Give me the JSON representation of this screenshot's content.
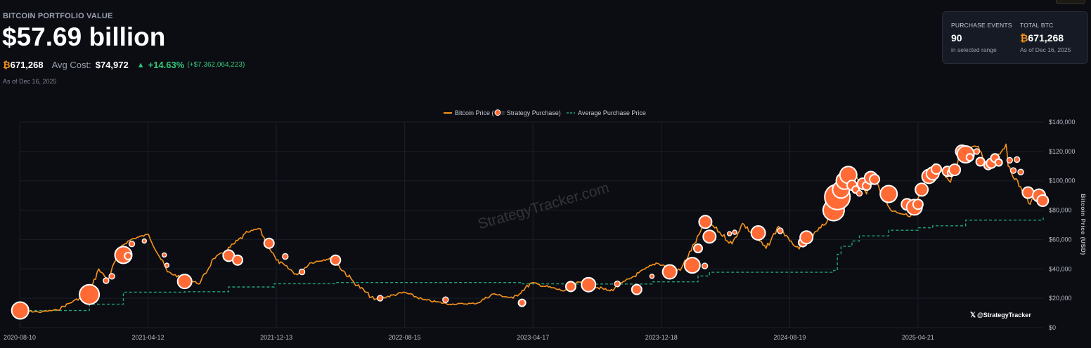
{
  "header": {
    "title": "BITCOIN PORTFOLIO VALUE",
    "value": "$57.69 billion",
    "btc_symbol": "₿",
    "btc_holdings": "671,268",
    "avg_cost_label": "Avg Cost:",
    "avg_cost": "$74,972",
    "change_arrow": "▲",
    "change_pct": "+14.63%",
    "change_abs": "(+$7,362,064,223)",
    "as_of": "As of Dec 16, 2025"
  },
  "summary_card": {
    "events_label": "PURCHASE EVENTS",
    "events_value": "90",
    "events_sub": "in selected range",
    "total_label": "TOTAL BTC",
    "total_symbol": "₿",
    "total_value": "671,268",
    "total_sub": "As of Dec 16, 2025"
  },
  "legend": {
    "price_label_pre": "Bitcoin Price (",
    "price_label_post": " = Strategy Purchase)",
    "avg_label": "Average Purchase Price"
  },
  "watermark": "StrategyTracker.com",
  "handle": "@StrategyTracker",
  "handle_icon": "x-logo-icon",
  "colors": {
    "price_line": "#f7931a",
    "avg_line": "#1fa37a",
    "purchase_dot": "#ff6a35",
    "background": "#0b0d13"
  },
  "chart_data": {
    "type": "line",
    "ylabel": "Bitcoin Price (USD)",
    "ylim": [
      0,
      140000
    ],
    "y_ticks": [
      "$0",
      "$20,000",
      "$40,000",
      "$60,000",
      "$80,000",
      "$100,000",
      "$120,000",
      "$140,000"
    ],
    "y_tick_values": [
      0,
      20000,
      40000,
      60000,
      80000,
      100000,
      120000,
      140000
    ],
    "x_ticks": [
      "2020-08-10",
      "2021-04-12",
      "2021-12-13",
      "2022-08-15",
      "2023-04-17",
      "2023-12-18",
      "2024-08-19",
      "2025-04-21"
    ],
    "x_start": "2020-08-10",
    "x_end": "2025-12-16",
    "legend_position": "top-center",
    "grid": true,
    "series": [
      {
        "name": "Bitcoin Price",
        "points": [
          [
            "2020-08-10",
            11800
          ],
          [
            "2020-09-15",
            10600
          ],
          [
            "2020-10-20",
            12000
          ],
          [
            "2020-11-20",
            18000
          ],
          [
            "2020-12-21",
            23000
          ],
          [
            "2021-01-08",
            40000
          ],
          [
            "2021-01-25",
            32500
          ],
          [
            "2021-02-21",
            56000
          ],
          [
            "2021-03-13",
            60500
          ],
          [
            "2021-04-13",
            63500
          ],
          [
            "2021-05-19",
            38000
          ],
          [
            "2021-06-21",
            33000
          ],
          [
            "2021-07-20",
            30000
          ],
          [
            "2021-08-15",
            47000
          ],
          [
            "2021-09-07",
            52000
          ],
          [
            "2021-10-20",
            65000
          ],
          [
            "2021-11-10",
            67500
          ],
          [
            "2021-12-13",
            46000
          ],
          [
            "2022-01-22",
            36000
          ],
          [
            "2022-02-15",
            44000
          ],
          [
            "2022-03-28",
            47500
          ],
          [
            "2022-05-10",
            31000
          ],
          [
            "2022-06-18",
            19000
          ],
          [
            "2022-08-15",
            24000
          ],
          [
            "2022-09-20",
            19000
          ],
          [
            "2022-11-09",
            16000
          ],
          [
            "2022-12-30",
            16500
          ],
          [
            "2023-01-31",
            23000
          ],
          [
            "2023-03-10",
            20000
          ],
          [
            "2023-04-14",
            30500
          ],
          [
            "2023-06-15",
            25000
          ],
          [
            "2023-07-14",
            31000
          ],
          [
            "2023-09-11",
            25000
          ],
          [
            "2023-10-24",
            34500
          ],
          [
            "2023-12-08",
            44000
          ],
          [
            "2024-01-23",
            39000
          ],
          [
            "2024-03-14",
            73000
          ],
          [
            "2024-05-01",
            57000
          ],
          [
            "2024-05-21",
            71000
          ],
          [
            "2024-07-05",
            54000
          ],
          [
            "2024-07-29",
            69000
          ],
          [
            "2024-08-19",
            59000
          ],
          [
            "2024-09-06",
            53500
          ],
          [
            "2024-10-29",
            72000
          ],
          [
            "2024-11-22",
            99000
          ],
          [
            "2024-12-17",
            106000
          ],
          [
            "2025-01-13",
            91000
          ],
          [
            "2025-01-21",
            106000
          ],
          [
            "2025-02-28",
            80000
          ],
          [
            "2025-04-07",
            76000
          ],
          [
            "2025-05-22",
            111500
          ],
          [
            "2025-06-22",
            99000
          ],
          [
            "2025-07-14",
            122000
          ],
          [
            "2025-08-14",
            123500
          ],
          [
            "2025-09-01",
            108000
          ],
          [
            "2025-10-06",
            125000
          ],
          [
            "2025-10-10",
            110000
          ],
          [
            "2025-11-21",
            84000
          ],
          [
            "2025-12-03",
            93000
          ],
          [
            "2025-12-16",
            86500
          ]
        ]
      },
      {
        "name": "Average Purchase Price",
        "points": [
          [
            "2020-08-10",
            11650
          ],
          [
            "2020-12-21",
            15950
          ],
          [
            "2021-02-24",
            24200
          ],
          [
            "2021-06-21",
            24450
          ],
          [
            "2021-09-13",
            27700
          ],
          [
            "2021-12-09",
            29900
          ],
          [
            "2022-04-05",
            30700
          ],
          [
            "2023-03-27",
            29800
          ],
          [
            "2023-06-28",
            29700
          ],
          [
            "2023-11-30",
            31200
          ],
          [
            "2024-02-26",
            35200
          ],
          [
            "2024-03-19",
            37700
          ],
          [
            "2024-11-11",
            39000
          ],
          [
            "2024-11-18",
            49900
          ],
          [
            "2024-11-25",
            55400
          ],
          [
            "2024-12-16",
            59000
          ],
          [
            "2024-12-30",
            62500
          ],
          [
            "2025-02-24",
            66300
          ],
          [
            "2025-04-21",
            68000
          ],
          [
            "2025-05-19",
            69400
          ],
          [
            "2025-07-21",
            73200
          ],
          [
            "2025-12-16",
            74972
          ]
        ]
      }
    ],
    "purchases": [
      {
        "date": "2020-08-11",
        "price": 11700,
        "size": 12
      },
      {
        "date": "2020-12-21",
        "price": 22600,
        "size": 14
      },
      {
        "date": "2021-01-22",
        "price": 32000,
        "size": 4
      },
      {
        "date": "2021-02-02",
        "price": 35000,
        "size": 4
      },
      {
        "date": "2021-02-24",
        "price": 49500,
        "size": 12
      },
      {
        "date": "2021-03-05",
        "price": 48800,
        "size": 5
      },
      {
        "date": "2021-03-12",
        "price": 57000,
        "size": 4
      },
      {
        "date": "2021-04-05",
        "price": 59000,
        "size": 3
      },
      {
        "date": "2021-05-13",
        "price": 49500,
        "size": 3
      },
      {
        "date": "2021-05-18",
        "price": 42500,
        "size": 3
      },
      {
        "date": "2021-06-21",
        "price": 31500,
        "size": 10
      },
      {
        "date": "2021-09-13",
        "price": 49000,
        "size": 8
      },
      {
        "date": "2021-09-30",
        "price": 46000,
        "size": 7
      },
      {
        "date": "2021-11-29",
        "price": 57500,
        "size": 7
      },
      {
        "date": "2021-12-30",
        "price": 48500,
        "size": 4
      },
      {
        "date": "2022-01-31",
        "price": 38000,
        "size": 4
      },
      {
        "date": "2022-04-05",
        "price": 46000,
        "size": 7
      },
      {
        "date": "2022-06-29",
        "price": 20000,
        "size": 4
      },
      {
        "date": "2022-11-01",
        "price": 19000,
        "size": 4
      },
      {
        "date": "2023-03-27",
        "price": 16900,
        "size": 5
      },
      {
        "date": "2023-06-28",
        "price": 28000,
        "size": 7
      },
      {
        "date": "2023-07-31",
        "price": 28500,
        "size": 4
      },
      {
        "date": "2023-08-01",
        "price": 29300,
        "size": 10
      },
      {
        "date": "2023-09-25",
        "price": 29800,
        "size": 4
      },
      {
        "date": "2023-11-01",
        "price": 26000,
        "size": 7
      },
      {
        "date": "2023-11-30",
        "price": 35000,
        "size": 3
      },
      {
        "date": "2024-01-03",
        "price": 38000,
        "size": 10
      },
      {
        "date": "2024-02-15",
        "price": 42500,
        "size": 11
      },
      {
        "date": "2024-03-10",
        "price": 42000,
        "size": 4
      },
      {
        "date": "2024-02-26",
        "price": 54000,
        "size": 6
      },
      {
        "date": "2024-03-11",
        "price": 72000,
        "size": 9
      },
      {
        "date": "2024-03-19",
        "price": 62000,
        "size": 9
      },
      {
        "date": "2024-04-26",
        "price": 64000,
        "size": 3
      },
      {
        "date": "2024-05-06",
        "price": 65000,
        "size": 3
      },
      {
        "date": "2024-06-20",
        "price": 64500,
        "size": 10
      },
      {
        "date": "2024-08-01",
        "price": 66000,
        "size": 4
      },
      {
        "date": "2024-09-13",
        "price": 58000,
        "size": 6
      },
      {
        "date": "2024-09-20",
        "price": 61500,
        "size": 9
      },
      {
        "date": "2024-11-11",
        "price": 80000,
        "size": 15
      },
      {
        "date": "2024-11-18",
        "price": 89000,
        "size": 18
      },
      {
        "date": "2024-11-25",
        "price": 94000,
        "size": 12
      },
      {
        "date": "2024-12-02",
        "price": 100000,
        "size": 12
      },
      {
        "date": "2024-12-09",
        "price": 104000,
        "size": 12
      },
      {
        "date": "2024-12-16",
        "price": 97000,
        "size": 7
      },
      {
        "date": "2024-12-23",
        "price": 94000,
        "size": 5
      },
      {
        "date": "2024-12-30",
        "price": 91500,
        "size": 4
      },
      {
        "date": "2025-01-06",
        "price": 98000,
        "size": 8
      },
      {
        "date": "2025-01-13",
        "price": 96500,
        "size": 6
      },
      {
        "date": "2025-01-21",
        "price": 102000,
        "size": 9
      },
      {
        "date": "2025-01-28",
        "price": 101000,
        "size": 7
      },
      {
        "date": "2025-02-24",
        "price": 91000,
        "size": 12
      },
      {
        "date": "2025-03-31",
        "price": 84000,
        "size": 8
      },
      {
        "date": "2025-04-14",
        "price": 82000,
        "size": 11
      },
      {
        "date": "2025-04-21",
        "price": 84000,
        "size": 7
      },
      {
        "date": "2025-04-28",
        "price": 94000,
        "size": 9
      },
      {
        "date": "2025-05-12",
        "price": 103000,
        "size": 10
      },
      {
        "date": "2025-05-19",
        "price": 105000,
        "size": 9
      },
      {
        "date": "2025-05-26",
        "price": 108000,
        "size": 7
      },
      {
        "date": "2025-06-16",
        "price": 106500,
        "size": 7
      },
      {
        "date": "2025-06-23",
        "price": 105500,
        "size": 5
      },
      {
        "date": "2025-06-30",
        "price": 107500,
        "size": 8
      },
      {
        "date": "2025-07-14",
        "price": 120000,
        "size": 9
      },
      {
        "date": "2025-07-21",
        "price": 118000,
        "size": 12
      },
      {
        "date": "2025-07-29",
        "price": 116000,
        "size": 5
      },
      {
        "date": "2025-08-11",
        "price": 120000,
        "size": 4
      },
      {
        "date": "2025-08-18",
        "price": 113000,
        "size": 6
      },
      {
        "date": "2025-09-02",
        "price": 110500,
        "size": 6
      },
      {
        "date": "2025-09-08",
        "price": 112000,
        "size": 7
      },
      {
        "date": "2025-09-15",
        "price": 115500,
        "size": 6
      },
      {
        "date": "2025-09-22",
        "price": 112500,
        "size": 5
      },
      {
        "date": "2025-10-13",
        "price": 114000,
        "size": 4
      },
      {
        "date": "2025-10-20",
        "price": 107000,
        "size": 4
      },
      {
        "date": "2025-10-27",
        "price": 114500,
        "size": 4
      },
      {
        "date": "2025-11-03",
        "price": 106000,
        "size": 4
      },
      {
        "date": "2025-11-17",
        "price": 92000,
        "size": 8
      },
      {
        "date": "2025-12-08",
        "price": 90000,
        "size": 9
      },
      {
        "date": "2025-12-15",
        "price": 86500,
        "size": 8
      }
    ]
  }
}
